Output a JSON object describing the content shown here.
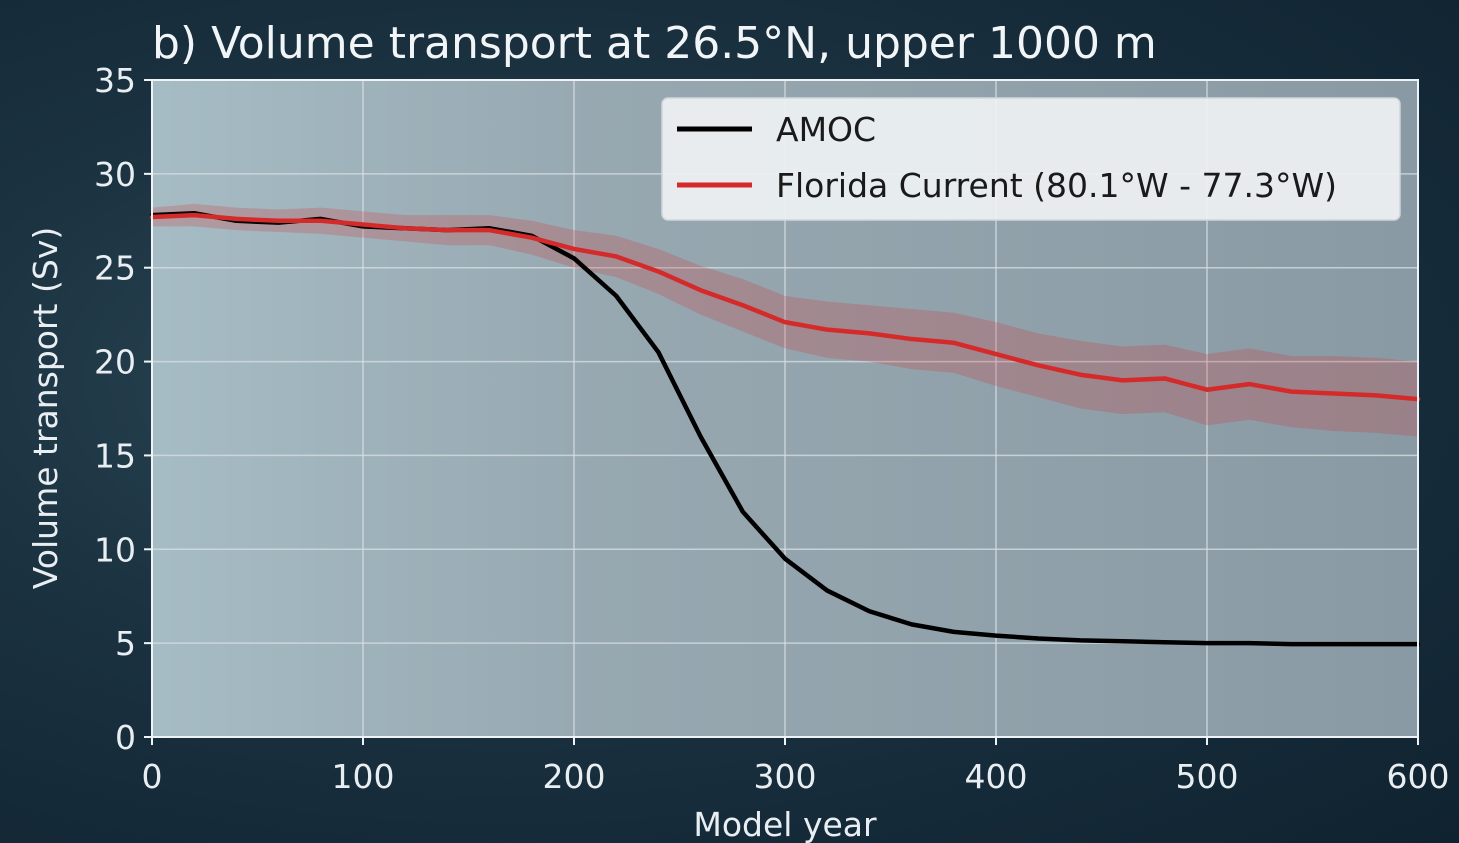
{
  "chart_data": {
    "type": "line",
    "title": "b) Volume transport at 26.5°N, upper 1000 m",
    "xlabel": "Model year",
    "ylabel": "Volume transport (Sv)",
    "xlim": [
      0,
      600
    ],
    "ylim": [
      0,
      35
    ],
    "xticks": [
      0,
      100,
      200,
      300,
      400,
      500,
      600
    ],
    "yticks": [
      0,
      5,
      10,
      15,
      20,
      25,
      30,
      35
    ],
    "grid": true,
    "legend_position": "top-right",
    "series": [
      {
        "name": "AMOC",
        "color": "#000000",
        "x": [
          0,
          20,
          40,
          60,
          80,
          100,
          120,
          140,
          160,
          180,
          200,
          220,
          240,
          260,
          280,
          300,
          320,
          340,
          360,
          380,
          400,
          420,
          440,
          460,
          480,
          500,
          520,
          540,
          560,
          580,
          600
        ],
        "y": [
          27.8,
          27.9,
          27.5,
          27.4,
          27.6,
          27.2,
          27.1,
          27.0,
          27.1,
          26.7,
          25.5,
          23.5,
          20.5,
          16.0,
          12.0,
          9.5,
          7.8,
          6.7,
          6.0,
          5.6,
          5.4,
          5.25,
          5.15,
          5.1,
          5.05,
          5.0,
          5.0,
          4.95,
          4.95,
          4.95,
          4.95
        ]
      },
      {
        "name": "Florida Current (80.1°W - 77.3°W)",
        "color": "#d42a2a",
        "band_halfwidth": [
          0.5,
          0.6,
          0.6,
          0.6,
          0.7,
          0.7,
          0.7,
          0.8,
          0.8,
          0.9,
          1.0,
          1.1,
          1.2,
          1.3,
          1.4,
          1.4,
          1.5,
          1.5,
          1.6,
          1.6,
          1.7,
          1.7,
          1.8,
          1.8,
          1.8,
          1.9,
          1.9,
          1.9,
          2.0,
          2.0,
          2.0
        ],
        "x": [
          0,
          20,
          40,
          60,
          80,
          100,
          120,
          140,
          160,
          180,
          200,
          220,
          240,
          260,
          280,
          300,
          320,
          340,
          360,
          380,
          400,
          420,
          440,
          460,
          480,
          500,
          520,
          540,
          560,
          580,
          600
        ],
        "y": [
          27.7,
          27.8,
          27.6,
          27.5,
          27.5,
          27.3,
          27.1,
          27.0,
          27.0,
          26.6,
          26.0,
          25.6,
          24.8,
          23.8,
          23.0,
          22.1,
          21.7,
          21.5,
          21.2,
          21.0,
          20.4,
          19.8,
          19.3,
          19.0,
          19.1,
          18.5,
          18.8,
          18.4,
          18.3,
          18.2,
          18.0
        ]
      }
    ]
  }
}
